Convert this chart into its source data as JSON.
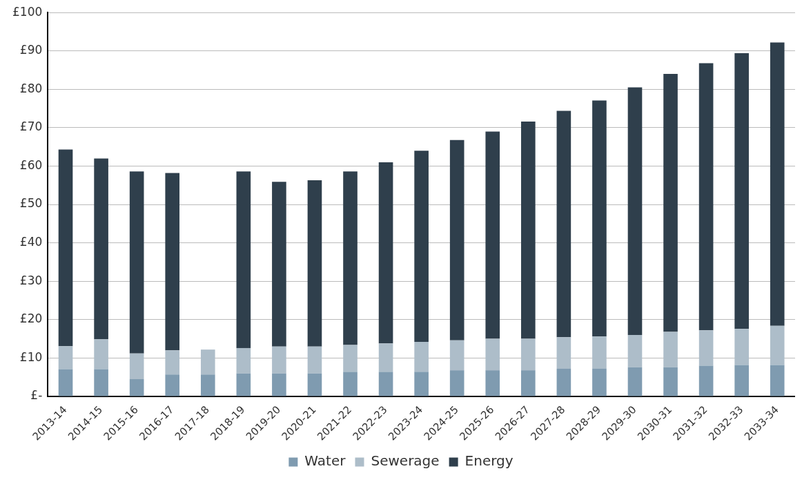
{
  "chart_data": {
    "type": "bar",
    "stacked": true,
    "categories": [
      "2013-14",
      "2014-15",
      "2015-16",
      "2016-17",
      "2017-18",
      "2018-19",
      "2019-20",
      "2020-21",
      "2021-22",
      "2022-23",
      "2023-24",
      "2024-25",
      "2025-26",
      "2026-27",
      "2027-28",
      "2028-29",
      "2029-30",
      "2030-31",
      "2031-32",
      "2032-33",
      "2033-34"
    ],
    "series": [
      {
        "name": "Water",
        "color": "#7f9bb0",
        "values": [
          7.1,
          7.1,
          4.5,
          5.7,
          5.7,
          6.0,
          6.0,
          6.0,
          6.4,
          6.4,
          6.4,
          6.8,
          6.8,
          6.8,
          7.2,
          7.2,
          7.6,
          7.6,
          8.0,
          8.2,
          8.2
        ]
      },
      {
        "name": "Sewerage",
        "color": "#adbdc9",
        "values": [
          6.0,
          7.8,
          6.7,
          6.3,
          6.5,
          6.6,
          7.0,
          7.0,
          7.0,
          7.4,
          7.8,
          7.8,
          8.2,
          8.2,
          8.2,
          8.4,
          8.4,
          9.2,
          9.2,
          9.4,
          10.2
        ]
      },
      {
        "name": "Energy",
        "color": "#2f3f4c",
        "values": [
          51.2,
          47.1,
          47.4,
          46.2,
          null,
          46.0,
          42.9,
          43.3,
          45.2,
          47.2,
          49.8,
          52.2,
          54.0,
          56.6,
          59.0,
          61.5,
          64.5,
          67.2,
          69.6,
          71.8,
          73.8
        ]
      }
    ],
    "ylim": [
      0,
      100
    ],
    "yticks": [
      {
        "value": 0,
        "label": "£-"
      },
      {
        "value": 10,
        "label": "£10"
      },
      {
        "value": 20,
        "label": "£20"
      },
      {
        "value": 30,
        "label": "£30"
      },
      {
        "value": 40,
        "label": "£40"
      },
      {
        "value": 50,
        "label": "£50"
      },
      {
        "value": 60,
        "label": "£60"
      },
      {
        "value": 70,
        "label": "£70"
      },
      {
        "value": 80,
        "label": "£80"
      },
      {
        "value": 90,
        "label": "£90"
      },
      {
        "value": 100,
        "label": "£100"
      }
    ],
    "grid": "y",
    "legend": "bottom"
  }
}
